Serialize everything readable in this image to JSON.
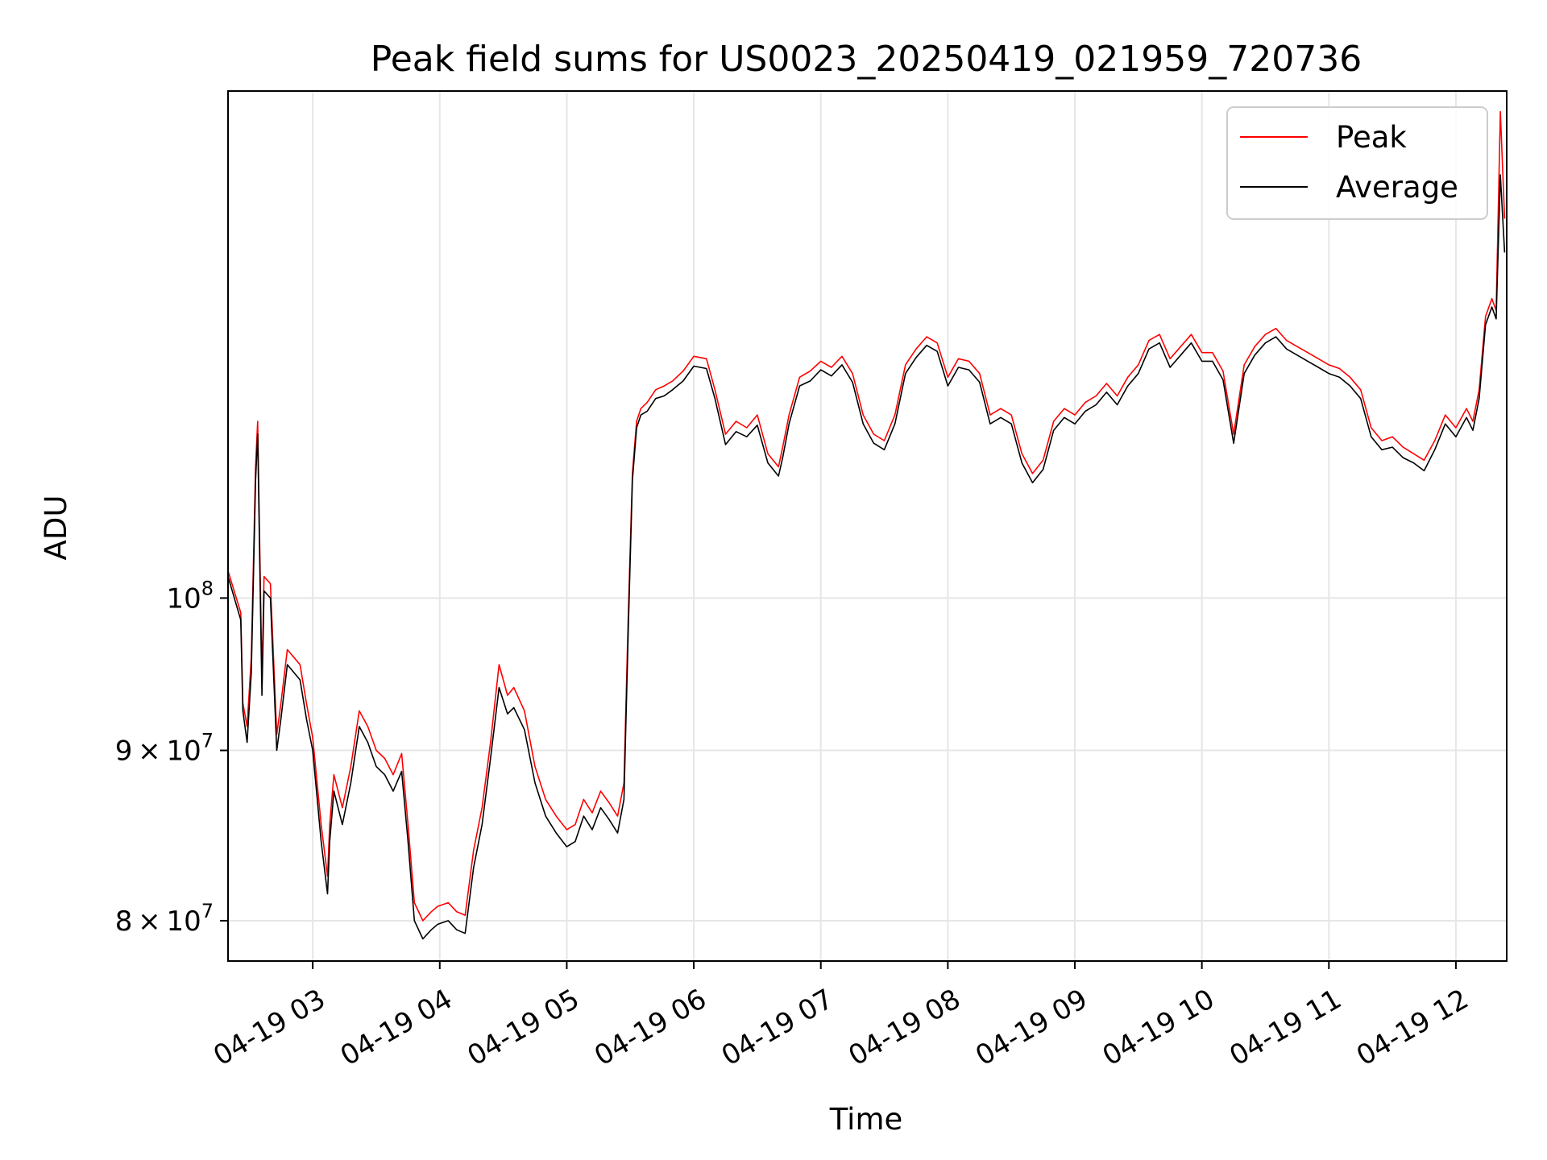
{
  "chart_data": {
    "type": "line",
    "title": "Peak field sums for US0023_20250419_021959_720736",
    "xlabel": "Time",
    "ylabel": "ADU",
    "yscale": "log",
    "xlim": [
      "2025-04-19T02:19:59",
      "2025-04-19T12:24:00"
    ],
    "ylim": [
      77800000,
      142000000
    ],
    "grid": true,
    "legend_position": "top-right",
    "x_ticks": [
      {
        "value": "2025-04-19T03:00:00",
        "label": "04-19 03"
      },
      {
        "value": "2025-04-19T04:00:00",
        "label": "04-19 04"
      },
      {
        "value": "2025-04-19T05:00:00",
        "label": "04-19 05"
      },
      {
        "value": "2025-04-19T06:00:00",
        "label": "04-19 06"
      },
      {
        "value": "2025-04-19T07:00:00",
        "label": "04-19 07"
      },
      {
        "value": "2025-04-19T08:00:00",
        "label": "04-19 08"
      },
      {
        "value": "2025-04-19T09:00:00",
        "label": "04-19 09"
      },
      {
        "value": "2025-04-19T10:00:00",
        "label": "04-19 10"
      },
      {
        "value": "2025-04-19T11:00:00",
        "label": "04-19 11"
      },
      {
        "value": "2025-04-19T12:00:00",
        "label": "04-19 12"
      }
    ],
    "y_ticks": [
      {
        "value": 80000000,
        "mant": "8",
        "base": "10",
        "exp": "7"
      },
      {
        "value": 90000000,
        "mant": "9",
        "base": "10",
        "exp": "7"
      },
      {
        "value": 100000000,
        "mant": "",
        "base": "10",
        "exp": "8"
      }
    ],
    "x": [
      "2025-04-19T02:20:00",
      "2025-04-19T02:26:00",
      "2025-04-19T02:27:00",
      "2025-04-19T02:29:00",
      "2025-04-19T02:31:00",
      "2025-04-19T02:33:00",
      "2025-04-19T02:34:00",
      "2025-04-19T02:36:00",
      "2025-04-19T02:37:00",
      "2025-04-19T02:40:00",
      "2025-04-19T02:43:00",
      "2025-04-19T02:45:00",
      "2025-04-19T02:48:00",
      "2025-04-19T02:51:00",
      "2025-04-19T02:54:00",
      "2025-04-19T02:57:00",
      "2025-04-19T03:00:00",
      "2025-04-19T03:04:00",
      "2025-04-19T03:07:00",
      "2025-04-19T03:08:00",
      "2025-04-19T03:10:00",
      "2025-04-19T03:14:00",
      "2025-04-19T03:18:00",
      "2025-04-19T03:22:00",
      "2025-04-19T03:26:00",
      "2025-04-19T03:30:00",
      "2025-04-19T03:34:00",
      "2025-04-19T03:38:00",
      "2025-04-19T03:42:00",
      "2025-04-19T03:45:00",
      "2025-04-19T03:48:00",
      "2025-04-19T03:52:00",
      "2025-04-19T03:56:00",
      "2025-04-19T03:59:00",
      "2025-04-19T04:04:00",
      "2025-04-19T04:08:00",
      "2025-04-19T04:12:00",
      "2025-04-19T04:16:00",
      "2025-04-19T04:20:00",
      "2025-04-19T04:24:00",
      "2025-04-19T04:28:00",
      "2025-04-19T04:32:00",
      "2025-04-19T04:35:00",
      "2025-04-19T04:40:00",
      "2025-04-19T04:45:00",
      "2025-04-19T04:50:00",
      "2025-04-19T04:55:00",
      "2025-04-19T05:00:00",
      "2025-04-19T05:04:00",
      "2025-04-19T05:08:00",
      "2025-04-19T05:12:00",
      "2025-04-19T05:16:00",
      "2025-04-19T05:20:00",
      "2025-04-19T05:24:00",
      "2025-04-19T05:27:00",
      "2025-04-19T05:29:00",
      "2025-04-19T05:31:00",
      "2025-04-19T05:33:00",
      "2025-04-19T05:35:00",
      "2025-04-19T05:38:00",
      "2025-04-19T05:42:00",
      "2025-04-19T05:46:00",
      "2025-04-19T05:50:00",
      "2025-04-19T05:55:00",
      "2025-04-19T06:00:00",
      "2025-04-19T06:06:00",
      "2025-04-19T06:10:00",
      "2025-04-19T06:15:00",
      "2025-04-19T06:20:00",
      "2025-04-19T06:25:00",
      "2025-04-19T06:30:00",
      "2025-04-19T06:35:00",
      "2025-04-19T06:40:00",
      "2025-04-19T06:42:00",
      "2025-04-19T06:45:00",
      "2025-04-19T06:50:00",
      "2025-04-19T06:55:00",
      "2025-04-19T07:00:00",
      "2025-04-19T07:05:00",
      "2025-04-19T07:10:00",
      "2025-04-19T07:15:00",
      "2025-04-19T07:20:00",
      "2025-04-19T07:25:00",
      "2025-04-19T07:30:00",
      "2025-04-19T07:35:00",
      "2025-04-19T07:40:00",
      "2025-04-19T07:45:00",
      "2025-04-19T07:50:00",
      "2025-04-19T07:55:00",
      "2025-04-19T08:00:00",
      "2025-04-19T08:05:00",
      "2025-04-19T08:10:00",
      "2025-04-19T08:15:00",
      "2025-04-19T08:20:00",
      "2025-04-19T08:25:00",
      "2025-04-19T08:30:00",
      "2025-04-19T08:35:00",
      "2025-04-19T08:40:00",
      "2025-04-19T08:45:00",
      "2025-04-19T08:50:00",
      "2025-04-19T08:55:00",
      "2025-04-19T09:00:00",
      "2025-04-19T09:05:00",
      "2025-04-19T09:10:00",
      "2025-04-19T09:15:00",
      "2025-04-19T09:20:00",
      "2025-04-19T09:25:00",
      "2025-04-19T09:30:00",
      "2025-04-19T09:35:00",
      "2025-04-19T09:40:00",
      "2025-04-19T09:45:00",
      "2025-04-19T09:50:00",
      "2025-04-19T09:55:00",
      "2025-04-19T10:00:00",
      "2025-04-19T10:05:00",
      "2025-04-19T10:10:00",
      "2025-04-19T10:15:00",
      "2025-04-19T10:20:00",
      "2025-04-19T10:25:00",
      "2025-04-19T10:30:00",
      "2025-04-19T10:35:00",
      "2025-04-19T10:40:00",
      "2025-04-19T10:45:00",
      "2025-04-19T10:50:00",
      "2025-04-19T10:55:00",
      "2025-04-19T11:00:00",
      "2025-04-19T11:05:00",
      "2025-04-19T11:10:00",
      "2025-04-19T11:15:00",
      "2025-04-19T11:20:00",
      "2025-04-19T11:25:00",
      "2025-04-19T11:30:00",
      "2025-04-19T11:35:00",
      "2025-04-19T11:40:00",
      "2025-04-19T11:45:00",
      "2025-04-19T11:50:00",
      "2025-04-19T11:55:00",
      "2025-04-19T12:00:00",
      "2025-04-19T12:05:00",
      "2025-04-19T12:08:00",
      "2025-04-19T12:11:00",
      "2025-04-19T12:14:00",
      "2025-04-19T12:17:00",
      "2025-04-19T12:19:00",
      "2025-04-19T12:21:00",
      "2025-04-19T12:23:00"
    ],
    "series": [
      {
        "name": "Peak",
        "color": "#ff0000",
        "values": [
          101900000,
          99000000,
          93000000,
          91500000,
          96000000,
          109500000,
          113000000,
          94500000,
          101500000,
          101000000,
          91000000,
          93000000,
          96500000,
          96000000,
          95500000,
          93000000,
          90800000,
          85500000,
          82500000,
          85500000,
          88500000,
          86500000,
          89000000,
          92500000,
          91500000,
          90000000,
          89500000,
          88500000,
          89800000,
          85500000,
          81000000,
          80000000,
          80500000,
          80800000,
          81000000,
          80500000,
          80300000,
          84000000,
          86500000,
          90500000,
          95500000,
          93500000,
          94000000,
          92500000,
          89000000,
          87000000,
          86000000,
          85200000,
          85500000,
          87000000,
          86200000,
          87500000,
          86800000,
          86000000,
          88000000,
          98500000,
          109000000,
          113000000,
          114000000,
          114500000,
          115500000,
          115800000,
          116200000,
          117000000,
          118200000,
          118000000,
          115500000,
          112000000,
          113000000,
          112500000,
          113500000,
          110500000,
          109500000,
          111000000,
          113500000,
          116500000,
          117000000,
          117800000,
          117300000,
          118200000,
          116800000,
          113500000,
          112000000,
          111500000,
          113500000,
          117500000,
          118800000,
          119800000,
          119300000,
          116500000,
          118000000,
          117800000,
          116800000,
          113500000,
          114000000,
          113500000,
          110500000,
          109000000,
          110000000,
          113000000,
          114000000,
          113500000,
          114500000,
          115000000,
          116000000,
          115000000,
          116500000,
          117500000,
          119500000,
          120000000,
          118000000,
          119000000,
          120000000,
          118500000,
          118500000,
          117000000,
          112000000,
          117500000,
          119000000,
          120000000,
          120500000,
          119500000,
          119000000,
          118500000,
          118000000,
          117500000,
          117200000,
          116500000,
          115500000,
          112500000,
          111500000,
          111800000,
          111000000,
          110500000,
          110000000,
          111500000,
          113500000,
          112500000,
          114000000,
          113000000,
          115500000,
          121500000,
          123000000,
          122000000,
          140000000,
          130000000
        ]
      },
      {
        "name": "Average",
        "color": "#000000",
        "values": [
          101500000,
          98500000,
          92500000,
          90500000,
          95000000,
          108500000,
          112000000,
          93500000,
          100500000,
          100000000,
          90000000,
          92000000,
          95500000,
          95000000,
          94500000,
          92000000,
          90000000,
          84500000,
          81500000,
          84500000,
          87500000,
          85500000,
          88000000,
          91500000,
          90500000,
          89000000,
          88500000,
          87500000,
          88700000,
          84500000,
          80000000,
          79000000,
          79500000,
          79800000,
          80000000,
          79500000,
          79300000,
          83000000,
          85500000,
          89500000,
          94000000,
          92300000,
          92700000,
          91300000,
          88000000,
          86000000,
          85000000,
          84200000,
          84500000,
          86000000,
          85200000,
          86500000,
          85800000,
          85000000,
          87000000,
          97500000,
          108500000,
          112500000,
          113500000,
          113800000,
          114800000,
          115000000,
          115500000,
          116200000,
          117400000,
          117200000,
          114800000,
          111200000,
          112200000,
          111800000,
          112700000,
          109800000,
          108800000,
          110200000,
          112800000,
          115800000,
          116200000,
          117100000,
          116600000,
          117500000,
          116100000,
          112800000,
          111300000,
          110800000,
          112800000,
          116800000,
          118100000,
          119100000,
          118600000,
          115800000,
          117300000,
          117100000,
          116100000,
          112800000,
          113300000,
          112800000,
          109800000,
          108300000,
          109300000,
          112300000,
          113300000,
          112800000,
          113800000,
          114300000,
          115300000,
          114300000,
          115800000,
          116800000,
          118800000,
          119300000,
          117300000,
          118300000,
          119300000,
          117800000,
          117800000,
          116300000,
          111300000,
          116800000,
          118300000,
          119300000,
          119800000,
          118800000,
          118300000,
          117800000,
          117300000,
          116800000,
          116500000,
          115800000,
          114800000,
          111800000,
          110800000,
          111000000,
          110200000,
          109800000,
          109200000,
          110800000,
          112800000,
          111800000,
          113300000,
          112300000,
          114800000,
          120800000,
          122300000,
          121300000,
          134000000,
          127000000
        ]
      }
    ]
  }
}
